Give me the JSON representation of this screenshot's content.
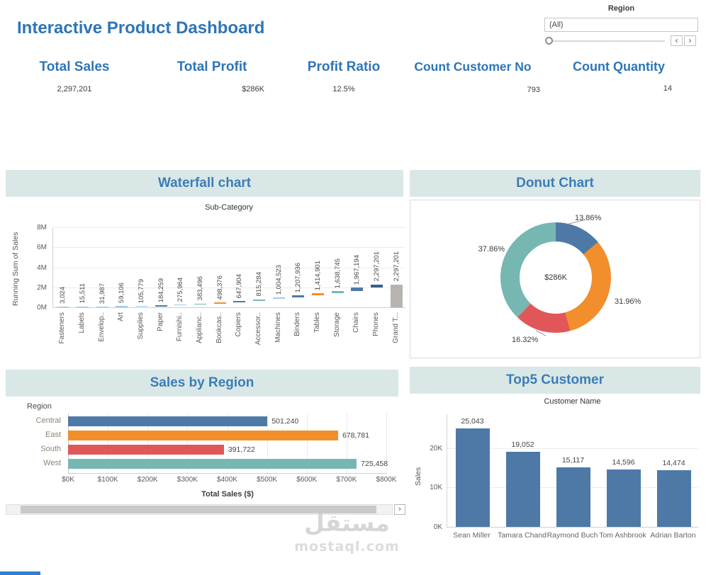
{
  "header": {
    "title": "Interactive Product Dashboard",
    "region_filter": {
      "label": "Region",
      "value": "(All)",
      "prev_glyph": "‹",
      "next_glyph": "›"
    }
  },
  "kpis": [
    {
      "label": "Total Sales",
      "value": "2,297,201"
    },
    {
      "label": "Total Profit",
      "value": "$286K"
    },
    {
      "label": "Profit Ratio",
      "value": "12.5%"
    },
    {
      "label": "Count Customer No",
      "value": "793"
    },
    {
      "label": "Count Quantity",
      "value": "14"
    }
  ],
  "theme": {
    "title_color": "#2e75b6",
    "panel_header_bg": "#d9e8e6",
    "panel_header_text": "#3d7cb8",
    "palette": {
      "blue": "#4e79a7",
      "orange": "#f28e2b",
      "red": "#e15759",
      "teal": "#76b7b2",
      "light_blue": "#a0cbe8",
      "gray": "#b7b3af"
    }
  },
  "chart_data": [
    {
      "id": "waterfall",
      "type": "bar",
      "subtype": "waterfall",
      "panel_title": "Waterfall chart",
      "title": "Sub-Category",
      "ylabel": "Running Sum of Sales",
      "ylim": [
        0,
        8000000
      ],
      "y_ticks": [
        {
          "label": "0M",
          "value": 0
        },
        {
          "label": "2M",
          "value": 2000000
        },
        {
          "label": "4M",
          "value": 4000000
        },
        {
          "label": "6M",
          "value": 6000000
        },
        {
          "label": "8M",
          "value": 8000000
        }
      ],
      "categories": [
        "Fasteners",
        "Labels",
        "Envelop..",
        "Art",
        "Supplies",
        "Paper",
        "Furnishi..",
        "Applianc..",
        "Bookcas..",
        "Copiers",
        "Accessor..",
        "Machines",
        "Binders",
        "Tables",
        "Storage",
        "Chairs",
        "Phones",
        "Grand T..."
      ],
      "cumulative_values": [
        3024,
        15511,
        31987,
        59106,
        105779,
        184259,
        275964,
        383496,
        498376,
        647904,
        815284,
        1004523,
        1207936,
        1414901,
        1638745,
        1967194,
        2297201,
        2297201
      ],
      "value_labels": [
        "3,024",
        "15,511",
        "31,987",
        "59,106",
        "105,779",
        "184,259",
        "275,964",
        "383,496",
        "498,376",
        "647,904",
        "815,284",
        "1,004,523",
        "1,207,936",
        "1,414,901",
        "1,638,745",
        "1,967,194",
        "2,297,201",
        "2,297,201"
      ],
      "bar_colors": [
        "#a0cbe8",
        "#a0cbe8",
        "#a0cbe8",
        "#a0cbe8",
        "#a0cbe8",
        "#4e79a7",
        "#a0cbe8",
        "#76b7b2",
        "#f28e2b",
        "#4e79a7",
        "#76b7b2",
        "#a0cbe8",
        "#4e79a7",
        "#f28e2b",
        "#76b7b2",
        "#4e79a7",
        "#36608a",
        "#b7b3af"
      ]
    },
    {
      "id": "donut",
      "type": "pie",
      "panel_title": "Donut Chart",
      "center_label": "$286K",
      "slices": [
        {
          "label": "13.86%",
          "pct": 13.86,
          "color": "#4e79a7"
        },
        {
          "label": "31.96%",
          "pct": 31.96,
          "color": "#f28e2b"
        },
        {
          "label": "16.32%",
          "pct": 16.32,
          "color": "#e15759"
        },
        {
          "label": "37.86%",
          "pct": 37.86,
          "color": "#76b7b2"
        }
      ]
    },
    {
      "id": "sales_by_region",
      "type": "bar",
      "subtype": "horizontal",
      "panel_title": "Sales by Region",
      "row_header": "Region",
      "categories": [
        "Central",
        "East",
        "South",
        "West"
      ],
      "values": [
        501240,
        678781,
        391722,
        725458
      ],
      "value_labels": [
        "501,240",
        "678,781",
        "391,722",
        "725,458"
      ],
      "bar_colors": [
        "#4e79a7",
        "#f28e2b",
        "#e15759",
        "#76b7b2"
      ],
      "xlim": [
        0,
        800000
      ],
      "x_ticks": [
        "$0K",
        "$100K",
        "$200K",
        "$300K",
        "$400K",
        "$500K",
        "$600K",
        "$700K",
        "$800K"
      ],
      "xlabel": "Total Sales ($)",
      "scroll_arrow": "›"
    },
    {
      "id": "top5",
      "type": "bar",
      "panel_title": "Top5 Customer",
      "title": "Customer Name",
      "ylabel": "Sales",
      "ylim": [
        0,
        28800
      ],
      "y_ticks": [
        {
          "label": "0K",
          "value": 0
        },
        {
          "label": "10K",
          "value": 10000
        },
        {
          "label": "20K",
          "value": 20000
        }
      ],
      "categories": [
        "Sean Miller",
        "Tamara Chand",
        "Raymond Buch",
        "Tom Ashbrook",
        "Adrian Barton"
      ],
      "values": [
        25043,
        19052,
        15117,
        14596,
        14474
      ],
      "value_labels": [
        "25,043",
        "19,052",
        "15,117",
        "14,596",
        "14,474"
      ],
      "bar_color": "#4e79a7"
    }
  ],
  "watermark": {
    "arabic": "مستقل",
    "domain": "mostaql.com"
  }
}
